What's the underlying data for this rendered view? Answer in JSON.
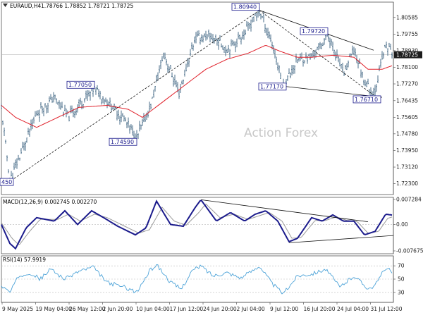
{
  "header": {
    "symbol": "EURAUD,H4",
    "ohlc": "1.78766 1.78852 1.78721 1.78725"
  },
  "watermark": "Action Forex",
  "colors": {
    "bars": "#4a6e8a",
    "ma": "#e0202a",
    "trend": "#111111",
    "macd_main": "#1b1b8c",
    "macd_signal": "#9a9a9a",
    "rsi": "#4da3d8",
    "annotation": "#1a1a8c",
    "price_tag_bg": "#1c1c1c",
    "price_tag_text": "#ffffff"
  },
  "chart_data": [
    {
      "type": "line",
      "panel": "price",
      "title": "EURAUD,H4",
      "ylim": [
        1.7175,
        1.8135
      ],
      "y_ticks": [
        "1.80585",
        "1.79755",
        "1.78930",
        "1.78100",
        "1.77270",
        "1.76435",
        "1.75605",
        "1.74780",
        "1.73950",
        "1.73120",
        "1.72300"
      ],
      "last_price": "1.78725",
      "annotations": [
        {
          "label": "1.80940",
          "x": 2,
          "value": 1.8094
        },
        {
          "label": "1.79720",
          "value": 1.7972
        },
        {
          "label": "1.77050",
          "value": 1.7705
        },
        {
          "label": "1.74590",
          "value": 1.7459
        },
        {
          "label": "1.77170",
          "value": 1.7717
        },
        {
          "label": "1.76710",
          "value": 1.7671
        },
        {
          "label": "450",
          "value": 1.7245
        }
      ],
      "x_ticks": [
        "9 May 2025",
        "19 May 04:00",
        "26 May 12:00",
        "2 Jun 20:00",
        "10 Jun 04:00",
        "17 Jun 12:00",
        "24 Jun 20:00",
        "2 Jul 04:00",
        "9 Jul 12:00",
        "16 Jul 20:00",
        "24 Jul 04:00",
        "31 Jul 12:00"
      ],
      "price_keypoints": [
        [
          0,
          1.76
        ],
        [
          12,
          1.7245
        ],
        [
          30,
          1.74
        ],
        [
          50,
          1.758
        ],
        [
          75,
          1.766
        ],
        [
          95,
          1.756
        ],
        [
          115,
          1.764
        ],
        [
          132,
          1.7705
        ],
        [
          150,
          1.764
        ],
        [
          172,
          1.756
        ],
        [
          192,
          1.7459
        ],
        [
          212,
          1.762
        ],
        [
          230,
          1.788
        ],
        [
          252,
          1.768
        ],
        [
          275,
          1.796
        ],
        [
          300,
          1.796
        ],
        [
          320,
          1.79
        ],
        [
          345,
          1.798
        ],
        [
          366,
          1.8094
        ],
        [
          382,
          1.795
        ],
        [
          400,
          1.7717
        ],
        [
          420,
          1.785
        ],
        [
          440,
          1.786
        ],
        [
          463,
          1.7972
        ],
        [
          485,
          1.778
        ],
        [
          500,
          1.79
        ],
        [
          515,
          1.774
        ],
        [
          528,
          1.7671
        ],
        [
          540,
          1.785
        ],
        [
          546,
          1.792
        ],
        [
          556,
          1.7873
        ]
      ],
      "ma_keypoints": [
        [
          0,
          1.762
        ],
        [
          20,
          1.756
        ],
        [
          50,
          1.751
        ],
        [
          80,
          1.756
        ],
        [
          110,
          1.761
        ],
        [
          150,
          1.762
        ],
        [
          180,
          1.76
        ],
        [
          200,
          1.756
        ],
        [
          230,
          1.764
        ],
        [
          260,
          1.772
        ],
        [
          290,
          1.78
        ],
        [
          320,
          1.785
        ],
        [
          350,
          1.788
        ],
        [
          375,
          1.792
        ],
        [
          395,
          1.789
        ],
        [
          420,
          1.786
        ],
        [
          440,
          1.786
        ],
        [
          470,
          1.787
        ],
        [
          500,
          1.786
        ],
        [
          520,
          1.78
        ],
        [
          540,
          1.78
        ],
        [
          556,
          1.782
        ]
      ]
    },
    {
      "type": "line",
      "panel": "macd",
      "title": "MACD(12,26,9) 0.002745 0.002270",
      "ylim": [
        -0.0085,
        0.0079
      ],
      "y_ticks": [
        "0.007284",
        "0.00",
        "-0.007675"
      ],
      "main_keypoints": [
        [
          0,
          0.0
        ],
        [
          12,
          -0.0055
        ],
        [
          20,
          -0.007
        ],
        [
          35,
          -0.001
        ],
        [
          50,
          0.002
        ],
        [
          75,
          0.001
        ],
        [
          90,
          0.004
        ],
        [
          108,
          0.0
        ],
        [
          128,
          0.004
        ],
        [
          145,
          0.002
        ],
        [
          165,
          -0.0005
        ],
        [
          190,
          -0.003
        ],
        [
          205,
          -0.001
        ],
        [
          220,
          0.0068
        ],
        [
          240,
          0.0
        ],
        [
          258,
          -0.0005
        ],
        [
          275,
          0.005
        ],
        [
          283,
          0.0072
        ],
        [
          305,
          0.001
        ],
        [
          325,
          0.0035
        ],
        [
          345,
          0.001
        ],
        [
          360,
          0.003
        ],
        [
          375,
          0.004
        ],
        [
          392,
          0.001
        ],
        [
          408,
          -0.005
        ],
        [
          420,
          -0.004
        ],
        [
          440,
          0.002
        ],
        [
          455,
          0.001
        ],
        [
          470,
          0.0028
        ],
        [
          485,
          0.001
        ],
        [
          500,
          0.001
        ],
        [
          515,
          -0.003
        ],
        [
          530,
          -0.002
        ],
        [
          545,
          0.003
        ],
        [
          556,
          0.0027
        ]
      ],
      "signal_keypoints": [
        [
          0,
          0.0005
        ],
        [
          15,
          -0.004
        ],
        [
          25,
          -0.006
        ],
        [
          40,
          -0.002
        ],
        [
          55,
          0.0015
        ],
        [
          80,
          0.0015
        ],
        [
          95,
          0.003
        ],
        [
          112,
          0.001
        ],
        [
          132,
          0.003
        ],
        [
          150,
          0.002
        ],
        [
          170,
          0.0
        ],
        [
          195,
          -0.0025
        ],
        [
          210,
          -0.0015
        ],
        [
          228,
          0.005
        ],
        [
          245,
          0.001
        ],
        [
          262,
          -0.0002
        ],
        [
          280,
          0.0035
        ],
        [
          290,
          0.006
        ],
        [
          310,
          0.002
        ],
        [
          330,
          0.003
        ],
        [
          350,
          0.0015
        ],
        [
          365,
          0.0025
        ],
        [
          380,
          0.0035
        ],
        [
          398,
          0.001
        ],
        [
          412,
          -0.004
        ],
        [
          425,
          -0.0038
        ],
        [
          445,
          0.0012
        ],
        [
          460,
          0.0012
        ],
        [
          475,
          0.0022
        ],
        [
          490,
          0.0012
        ],
        [
          505,
          0.0008
        ],
        [
          520,
          -0.0025
        ],
        [
          535,
          -0.002
        ],
        [
          548,
          0.0018
        ],
        [
          556,
          0.0023
        ]
      ]
    },
    {
      "type": "line",
      "panel": "rsi",
      "title": "RSI(14) 57.9919",
      "ylim": [
        15,
        85
      ],
      "y_ticks": [
        "70",
        "50",
        "30"
      ],
      "keypoints": [
        [
          0,
          40
        ],
        [
          12,
          30
        ],
        [
          25,
          55
        ],
        [
          40,
          60
        ],
        [
          55,
          50
        ],
        [
          70,
          65
        ],
        [
          90,
          50
        ],
        [
          110,
          62
        ],
        [
          130,
          68
        ],
        [
          150,
          45
        ],
        [
          175,
          38
        ],
        [
          192,
          30
        ],
        [
          210,
          62
        ],
        [
          220,
          72
        ],
        [
          240,
          45
        ],
        [
          255,
          35
        ],
        [
          270,
          62
        ],
        [
          283,
          70
        ],
        [
          300,
          55
        ],
        [
          320,
          60
        ],
        [
          340,
          52
        ],
        [
          355,
          62
        ],
        [
          366,
          70
        ],
        [
          385,
          42
        ],
        [
          400,
          28
        ],
        [
          420,
          55
        ],
        [
          440,
          58
        ],
        [
          460,
          65
        ],
        [
          480,
          38
        ],
        [
          500,
          55
        ],
        [
          520,
          36
        ],
        [
          530,
          40
        ],
        [
          545,
          68
        ],
        [
          556,
          58
        ]
      ]
    }
  ]
}
